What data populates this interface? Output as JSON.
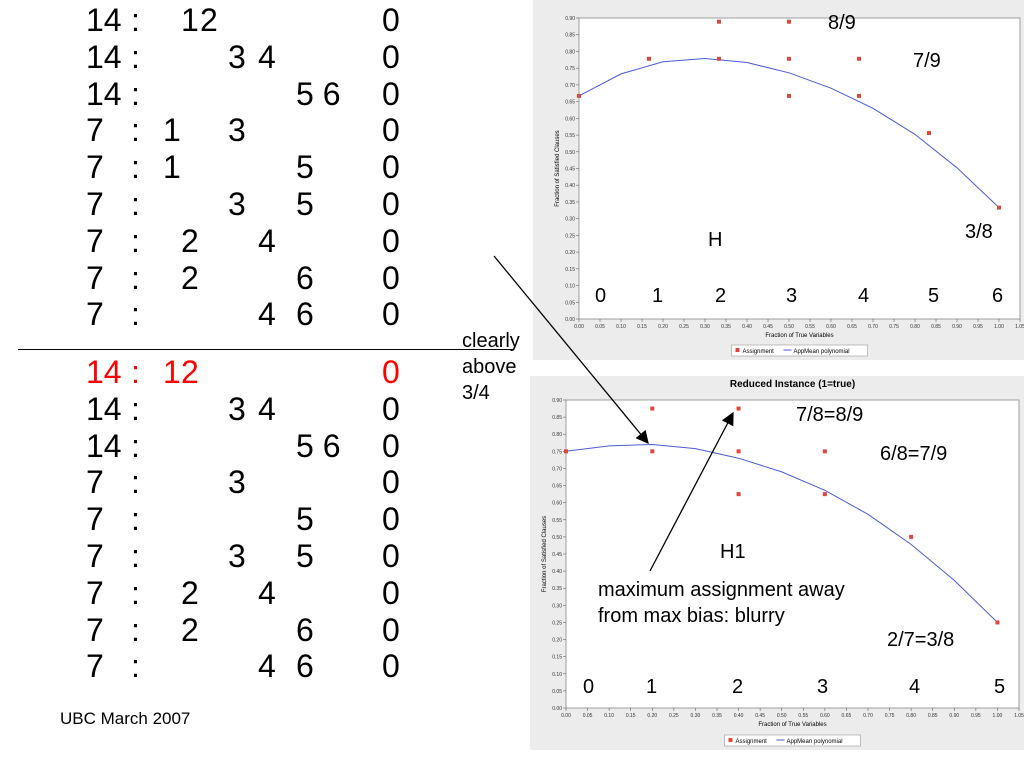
{
  "table": {
    "top_rows": [
      {
        "w": "14",
        "colon": ":",
        "c1": "",
        "c2": "1",
        "c3": "2",
        "c4": "",
        "c5": "",
        "c6": "",
        "z": "0"
      },
      {
        "w": "14",
        "colon": ":",
        "c1": "",
        "c2": "",
        "c3": "",
        "c4": "3",
        "c5": "4",
        "c6": "",
        "z": "0"
      },
      {
        "w": "14",
        "colon": ":",
        "c1": "",
        "c2": "",
        "c3": "",
        "c4": "",
        "c5": "",
        "c6": "5 6",
        "z": "0"
      },
      {
        "w": "7",
        "colon": ":",
        "c1": "1",
        "c2": "",
        "c3": "",
        "c4": "3",
        "c5": "",
        "c6": "",
        "z": "0"
      },
      {
        "w": "7",
        "colon": ":",
        "c1": "1",
        "c2": "",
        "c3": "",
        "c4": "",
        "c5": "",
        "c6": "5",
        "z": "0"
      },
      {
        "w": "7",
        "colon": ":",
        "c1": "",
        "c2": "",
        "c3": "",
        "c4": "3",
        "c5": "",
        "c6": "5",
        "z": "0"
      },
      {
        "w": "7",
        "colon": ":",
        "c1": "",
        "c2": "2",
        "c3": "",
        "c4": "",
        "c5": "4",
        "c6": "",
        "z": "0"
      },
      {
        "w": "7",
        "colon": ":",
        "c1": "",
        "c2": "2",
        "c3": "",
        "c4": "",
        "c5": "",
        "c6": "6",
        "z": "0"
      },
      {
        "w": "7",
        "colon": ":",
        "c1": "",
        "c2": "",
        "c3": "",
        "c4": "",
        "c5": "4",
        "c6": "6",
        "z": "0"
      }
    ],
    "bottom_rows": [
      {
        "w": "14",
        "colon": ":",
        "c1": "1",
        "c2": "2",
        "c3": "",
        "c4": "",
        "c5": "",
        "c6": "",
        "z": "0",
        "red": true
      },
      {
        "w": "14",
        "colon": ":",
        "c1": "",
        "c2": "",
        "c3": "",
        "c4": "3",
        "c5": "4",
        "c6": "",
        "z": "0"
      },
      {
        "w": "14",
        "colon": ":",
        "c1": "",
        "c2": "",
        "c3": "",
        "c4": "",
        "c5": "",
        "c6": "5 6",
        "z": "0"
      },
      {
        "w": "7",
        "colon": ":",
        "c1": "",
        "c2": "",
        "c3": "",
        "c4": "3",
        "c5": "",
        "c6": "",
        "z": "0"
      },
      {
        "w": "7",
        "colon": ":",
        "c1": "",
        "c2": "",
        "c3": "",
        "c4": "",
        "c5": "",
        "c6": "5",
        "z": "0"
      },
      {
        "w": "7",
        "colon": ":",
        "c1": "",
        "c2": "",
        "c3": "",
        "c4": "3",
        "c5": "",
        "c6": "5",
        "z": "0"
      },
      {
        "w": "7",
        "colon": ":",
        "c1": "",
        "c2": "2",
        "c3": "",
        "c4": "",
        "c5": "4",
        "c6": "",
        "z": "0"
      },
      {
        "w": "7",
        "colon": ":",
        "c1": "",
        "c2": "2",
        "c3": "",
        "c4": "",
        "c5": "",
        "c6": "6",
        "z": "0"
      },
      {
        "w": "7",
        "colon": ":",
        "c1": "",
        "c2": "",
        "c3": "",
        "c4": "",
        "c5": "4",
        "c6": "6",
        "z": "0"
      }
    ]
  },
  "footer": "UBC March 2007",
  "notes": {
    "clearly_above": "clearly\nabove\n3/4",
    "max_assignment": "maximum assignment away\nfrom max bias: blurry"
  },
  "colors": {
    "points": "#e0463c",
    "curve": "#4b5bd0",
    "red_text": "#ff0000"
  },
  "chart_data": [
    {
      "type": "scatter",
      "title": "",
      "xlabel": "Fraction of True Variables",
      "ylabel": "Fraction of Satisfied Clauses",
      "xlim": [
        0,
        1.05
      ],
      "ylim": [
        0,
        0.9
      ],
      "xticks": [
        "0.00",
        "0.05",
        "0.10",
        "0.15",
        "0.20",
        "0.25",
        "0.30",
        "0.35",
        "0.40",
        "0.45",
        "0.50",
        "0.55",
        "0.60",
        "0.65",
        "0.70",
        "0.75",
        "0.80",
        "0.85",
        "0.90",
        "0.95",
        "1.00",
        "1.05"
      ],
      "yticks": [
        "0.00",
        "0.05",
        "0.10",
        "0.15",
        "0.20",
        "0.25",
        "0.30",
        "0.35",
        "0.40",
        "0.45",
        "0.50",
        "0.55",
        "0.60",
        "0.65",
        "0.70",
        "0.75",
        "0.80",
        "0.85",
        "0.90"
      ],
      "legend": [
        "Assignment",
        "AppMean polynomial"
      ],
      "legend_position": "bottom",
      "series": [
        {
          "name": "Assignment",
          "points": [
            [
              0,
              0.667
            ],
            [
              0.1667,
              0.778
            ],
            [
              0.3333,
              0.889
            ],
            [
              0.3333,
              0.778
            ],
            [
              0.5,
              0.889
            ],
            [
              0.5,
              0.778
            ],
            [
              0.5,
              0.667
            ],
            [
              0.6667,
              0.778
            ],
            [
              0.6667,
              0.667
            ],
            [
              0.8333,
              0.556
            ],
            [
              1,
              0.333
            ]
          ]
        },
        {
          "name": "AppMean polynomial",
          "curve": [
            [
              0,
              0.667
            ],
            [
              0.1,
              0.733
            ],
            [
              0.2,
              0.769
            ],
            [
              0.3,
              0.779
            ],
            [
              0.4,
              0.767
            ],
            [
              0.5,
              0.736
            ],
            [
              0.6,
              0.69
            ],
            [
              0.7,
              0.63
            ],
            [
              0.8,
              0.552
            ],
            [
              0.9,
              0.452
            ],
            [
              1,
              0.333
            ]
          ]
        }
      ],
      "annotations": [
        "8/9",
        "7/9",
        "3/8",
        "H",
        "0",
        "1",
        "2",
        "3",
        "4",
        "5",
        "6"
      ]
    },
    {
      "type": "scatter",
      "title": "Reduced Instance (1=true)",
      "xlabel": "Fraction of True Variables",
      "ylabel": "Fraction of Satisfied Clauses",
      "xlim": [
        0,
        1.05
      ],
      "ylim": [
        0,
        0.9
      ],
      "xticks": [
        "0.00",
        "0.05",
        "0.10",
        "0.15",
        "0.20",
        "0.25",
        "0.30",
        "0.35",
        "0.40",
        "0.45",
        "0.50",
        "0.55",
        "0.60",
        "0.65",
        "0.70",
        "0.75",
        "0.80",
        "0.85",
        "0.90",
        "0.95",
        "1.00",
        "1.05"
      ],
      "yticks": [
        "0.00",
        "0.05",
        "0.10",
        "0.15",
        "0.20",
        "0.25",
        "0.30",
        "0.35",
        "0.40",
        "0.45",
        "0.50",
        "0.55",
        "0.60",
        "0.65",
        "0.70",
        "0.75",
        "0.80",
        "0.85",
        "0.90"
      ],
      "legend": [
        "Assignment",
        "AppMean polynomial"
      ],
      "legend_position": "bottom",
      "series": [
        {
          "name": "Assignment",
          "points": [
            [
              0,
              0.75
            ],
            [
              0.2,
              0.875
            ],
            [
              0.2,
              0.75
            ],
            [
              0.4,
              0.875
            ],
            [
              0.4,
              0.75
            ],
            [
              0.4,
              0.625
            ],
            [
              0.6,
              0.75
            ],
            [
              0.6,
              0.625
            ],
            [
              0.8,
              0.5
            ],
            [
              1,
              0.25
            ]
          ]
        },
        {
          "name": "AppMean polynomial",
          "curve": [
            [
              0,
              0.75
            ],
            [
              0.1,
              0.766
            ],
            [
              0.2,
              0.77
            ],
            [
              0.3,
              0.758
            ],
            [
              0.4,
              0.73
            ],
            [
              0.5,
              0.69
            ],
            [
              0.6,
              0.636
            ],
            [
              0.7,
              0.566
            ],
            [
              0.8,
              0.478
            ],
            [
              0.9,
              0.373
            ],
            [
              1,
              0.25
            ]
          ]
        }
      ],
      "annotations": [
        "7/8=8/9",
        "6/8=7/9",
        "2/7=3/8",
        "H1",
        "0",
        "1",
        "2",
        "3",
        "4",
        "5"
      ]
    }
  ]
}
